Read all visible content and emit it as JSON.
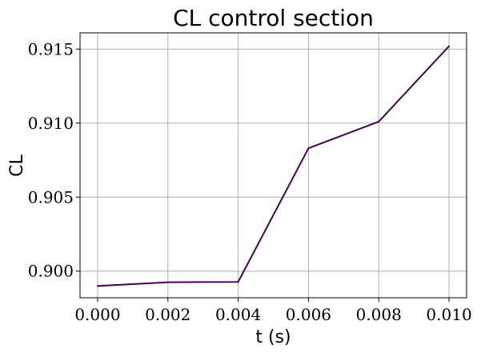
{
  "chart_data": {
    "type": "line",
    "title": "CL control section",
    "xlabel": "t (s)",
    "ylabel": "CL",
    "xlim": [
      -0.0005,
      0.0105
    ],
    "ylim": [
      0.8982,
      0.9161
    ],
    "xticks": [
      0.0,
      0.002,
      0.004,
      0.006,
      0.008,
      0.01
    ],
    "xtick_labels": [
      "0.000",
      "0.002",
      "0.004",
      "0.006",
      "0.008",
      "0.010"
    ],
    "yticks": [
      0.9,
      0.905,
      0.91,
      0.915
    ],
    "ytick_labels": [
      "0.900",
      "0.905",
      "0.910",
      "0.915"
    ],
    "grid": true,
    "series": [
      {
        "color": "#440154",
        "x": [
          0.0,
          0.002,
          0.004,
          0.006,
          0.008,
          0.01
        ],
        "y": [
          0.899,
          0.89925,
          0.89927,
          0.9083,
          0.9101,
          0.9152
        ]
      }
    ]
  }
}
